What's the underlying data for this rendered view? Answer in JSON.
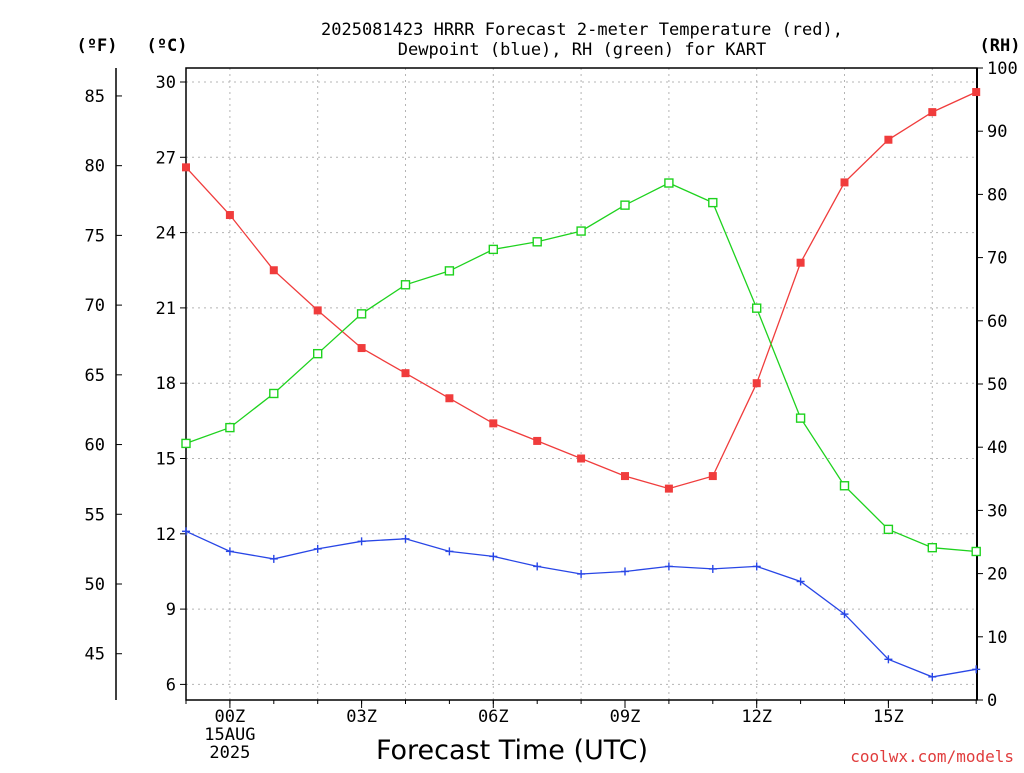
{
  "chart_data": {
    "type": "line",
    "title_lines": [
      "2025081423 HRRR Forecast 2-meter Temperature (red),",
      "Dewpoint (blue), RH (green) for KART"
    ],
    "xlabel": "Forecast Time (UTC)",
    "unit_labels": {
      "fahrenheit": "(ºF)",
      "celsius": "(ºC)",
      "rh": "(RH)"
    },
    "credit": "coolwx.com/models",
    "x": [
      "23Z",
      "00Z",
      "01Z",
      "02Z",
      "03Z",
      "04Z",
      "05Z",
      "06Z",
      "07Z",
      "08Z",
      "09Z",
      "10Z",
      "11Z",
      "12Z",
      "13Z",
      "14Z",
      "15Z",
      "16Z",
      "17Z"
    ],
    "x_tick_labels": [
      {
        "x": "00Z",
        "lines": [
          "00Z",
          "15AUG",
          "2025"
        ]
      },
      {
        "x": "03Z",
        "lines": [
          "03Z"
        ]
      },
      {
        "x": "06Z",
        "lines": [
          "06Z"
        ]
      },
      {
        "x": "09Z",
        "lines": [
          "09Z"
        ]
      },
      {
        "x": "12Z",
        "lines": [
          "12Z"
        ]
      },
      {
        "x": "15Z",
        "lines": [
          "15Z"
        ]
      }
    ],
    "celsius_axis": {
      "ylim": [
        5.4,
        30.6
      ],
      "ticks": [
        6,
        9,
        12,
        15,
        18,
        21,
        24,
        27,
        30
      ]
    },
    "fahrenheit_axis": {
      "ticks": [
        45,
        50,
        55,
        60,
        65,
        70,
        75,
        80,
        85
      ]
    },
    "rh_axis": {
      "ylim": [
        0,
        100
      ],
      "ticks": [
        0,
        10,
        20,
        30,
        40,
        50,
        60,
        70,
        80,
        90,
        100
      ]
    },
    "grid": true,
    "series": [
      {
        "name": "Temperature",
        "axis": "celsius",
        "color": "#f03c3c",
        "marker": "filled-square",
        "values": [
          26.6,
          24.7,
          22.5,
          20.9,
          19.4,
          18.4,
          17.4,
          16.4,
          15.7,
          15.0,
          14.3,
          13.8,
          14.3,
          18.0,
          22.8,
          26.0,
          27.7,
          28.8,
          29.6
        ]
      },
      {
        "name": "Dewpoint",
        "axis": "celsius",
        "color": "#2846e6",
        "marker": "plus",
        "values": [
          12.1,
          11.3,
          11.0,
          11.4,
          11.7,
          11.8,
          11.3,
          11.1,
          10.7,
          10.4,
          10.5,
          10.7,
          10.6,
          10.7,
          10.1,
          8.8,
          7.0,
          6.3,
          6.6
        ]
      },
      {
        "name": "RH",
        "axis": "rh",
        "color": "#1ed21e",
        "marker": "open-square",
        "values": [
          40.6,
          43.1,
          48.5,
          54.8,
          61.1,
          65.7,
          67.9,
          71.3,
          72.5,
          74.2,
          78.3,
          81.8,
          78.7,
          62.0,
          44.6,
          33.9,
          27.0,
          24.1,
          23.5
        ]
      }
    ]
  }
}
